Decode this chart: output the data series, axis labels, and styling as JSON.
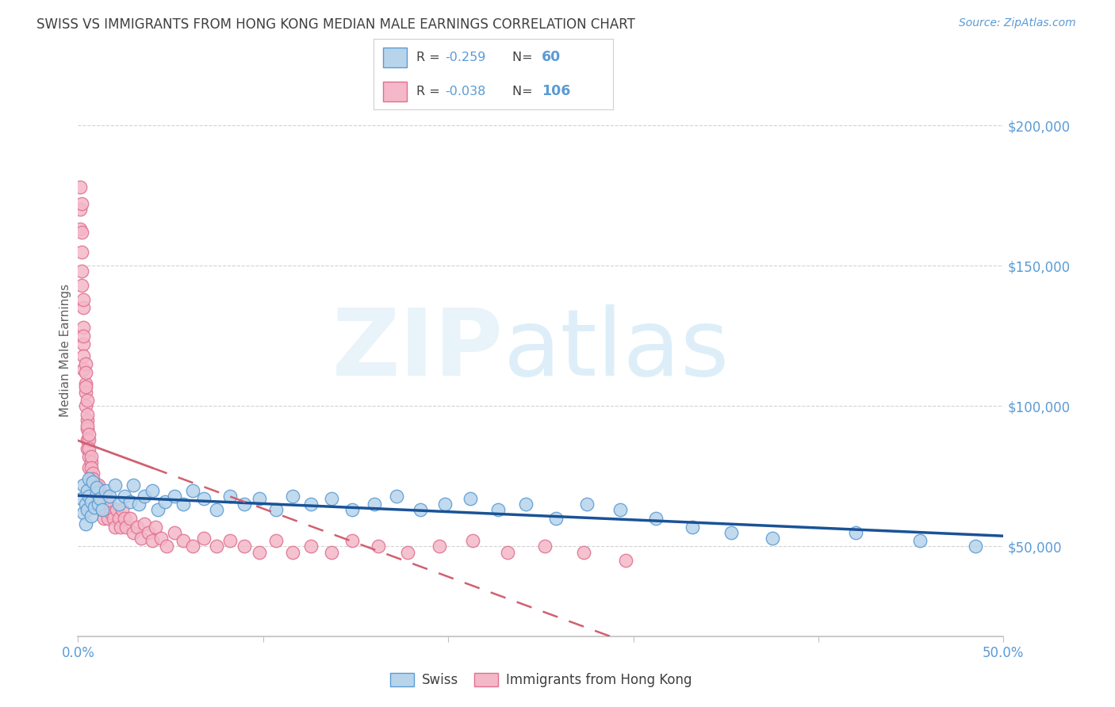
{
  "title": "SWISS VS IMMIGRANTS FROM HONG KONG MEDIAN MALE EARNINGS CORRELATION CHART",
  "source": "Source: ZipAtlas.com",
  "ylabel": "Median Male Earnings",
  "yticks": [
    50000,
    100000,
    150000,
    200000
  ],
  "ytick_labels": [
    "$50,000",
    "$100,000",
    "$150,000",
    "$200,000"
  ],
  "xmin": 0.0,
  "xmax": 0.5,
  "ymin": 18000,
  "ymax": 222000,
  "swiss_R": -0.259,
  "swiss_N": 60,
  "hk_R": -0.038,
  "hk_N": 106,
  "swiss_color": "#b8d4ea",
  "swiss_edge_color": "#5b9bd5",
  "hk_color": "#f4b8c8",
  "hk_edge_color": "#e07090",
  "regression_swiss_color": "#1a5296",
  "regression_hk_color": "#d06070",
  "title_color": "#404040",
  "axis_label_color": "#5b9bd5",
  "source_color": "#5b9bd5",
  "xtick_show": [
    0.0,
    0.5
  ],
  "xtick_labels": [
    "0.0%",
    "50.0%"
  ],
  "swiss_x": [
    0.002,
    0.003,
    0.003,
    0.004,
    0.004,
    0.005,
    0.005,
    0.006,
    0.006,
    0.007,
    0.007,
    0.008,
    0.009,
    0.01,
    0.01,
    0.011,
    0.012,
    0.013,
    0.015,
    0.017,
    0.02,
    0.022,
    0.025,
    0.028,
    0.03,
    0.033,
    0.036,
    0.04,
    0.043,
    0.047,
    0.052,
    0.057,
    0.062,
    0.068,
    0.075,
    0.082,
    0.09,
    0.098,
    0.107,
    0.116,
    0.126,
    0.137,
    0.148,
    0.16,
    0.172,
    0.185,
    0.198,
    0.212,
    0.227,
    0.242,
    0.258,
    0.275,
    0.293,
    0.312,
    0.332,
    0.353,
    0.375,
    0.42,
    0.455,
    0.485
  ],
  "swiss_y": [
    67000,
    62000,
    72000,
    65000,
    58000,
    70000,
    63000,
    68000,
    74000,
    61000,
    66000,
    73000,
    64000,
    69000,
    71000,
    65000,
    67000,
    63000,
    70000,
    68000,
    72000,
    65000,
    68000,
    66000,
    72000,
    65000,
    68000,
    70000,
    63000,
    66000,
    68000,
    65000,
    70000,
    67000,
    63000,
    68000,
    65000,
    67000,
    63000,
    68000,
    65000,
    67000,
    63000,
    65000,
    68000,
    63000,
    65000,
    67000,
    63000,
    65000,
    60000,
    65000,
    63000,
    60000,
    57000,
    55000,
    53000,
    55000,
    52000,
    50000
  ],
  "hk_x": [
    0.001,
    0.001,
    0.001,
    0.002,
    0.002,
    0.002,
    0.002,
    0.002,
    0.003,
    0.003,
    0.003,
    0.003,
    0.003,
    0.003,
    0.003,
    0.004,
    0.004,
    0.004,
    0.004,
    0.004,
    0.004,
    0.005,
    0.005,
    0.005,
    0.005,
    0.005,
    0.005,
    0.005,
    0.006,
    0.006,
    0.006,
    0.006,
    0.006,
    0.007,
    0.007,
    0.007,
    0.007,
    0.007,
    0.008,
    0.008,
    0.008,
    0.008,
    0.008,
    0.009,
    0.009,
    0.009,
    0.009,
    0.01,
    0.01,
    0.01,
    0.01,
    0.011,
    0.011,
    0.011,
    0.012,
    0.012,
    0.012,
    0.013,
    0.013,
    0.014,
    0.014,
    0.015,
    0.015,
    0.016,
    0.016,
    0.017,
    0.018,
    0.019,
    0.02,
    0.021,
    0.022,
    0.023,
    0.024,
    0.025,
    0.026,
    0.028,
    0.03,
    0.032,
    0.034,
    0.036,
    0.038,
    0.04,
    0.042,
    0.045,
    0.048,
    0.052,
    0.057,
    0.062,
    0.068,
    0.075,
    0.082,
    0.09,
    0.098,
    0.107,
    0.116,
    0.126,
    0.137,
    0.148,
    0.162,
    0.178,
    0.195,
    0.213,
    0.232,
    0.252,
    0.273,
    0.296
  ],
  "hk_y": [
    178000,
    170000,
    163000,
    172000,
    162000,
    155000,
    148000,
    143000,
    135000,
    128000,
    138000,
    122000,
    118000,
    125000,
    113000,
    108000,
    115000,
    105000,
    112000,
    100000,
    107000,
    95000,
    102000,
    92000,
    97000,
    88000,
    93000,
    85000,
    88000,
    82000,
    90000,
    78000,
    85000,
    80000,
    75000,
    82000,
    78000,
    72000,
    76000,
    70000,
    74000,
    68000,
    72000,
    68000,
    72000,
    65000,
    70000,
    68000,
    72000,
    65000,
    70000,
    68000,
    65000,
    72000,
    68000,
    65000,
    70000,
    63000,
    67000,
    65000,
    60000,
    68000,
    63000,
    65000,
    60000,
    65000,
    62000,
    60000,
    57000,
    63000,
    60000,
    57000,
    63000,
    60000,
    57000,
    60000,
    55000,
    57000,
    53000,
    58000,
    55000,
    52000,
    57000,
    53000,
    50000,
    55000,
    52000,
    50000,
    53000,
    50000,
    52000,
    50000,
    48000,
    52000,
    48000,
    50000,
    48000,
    52000,
    50000,
    48000,
    50000,
    52000,
    48000,
    50000,
    48000,
    45000
  ]
}
